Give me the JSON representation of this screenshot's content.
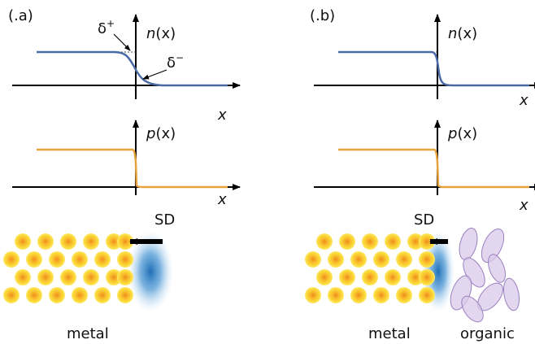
{
  "panels": [
    {
      "label": "(.a)",
      "n_axis": {
        "name": "n",
        "arg": "(x)"
      },
      "p_axis": {
        "name": "p",
        "arg": "(x)"
      },
      "x_axis_top": "x",
      "x_axis_bottom": "x",
      "delta_plus": {
        "symbol": "δ",
        "sup": "+"
      },
      "delta_minus": {
        "symbol": "δ",
        "sup": "−"
      },
      "sd": "SD",
      "metal": "metal"
    },
    {
      "label": "(.b)",
      "n_axis": {
        "name": "n",
        "arg": "(x)"
      },
      "p_axis": {
        "name": "p",
        "arg": "(x)"
      },
      "x_axis_top": "x",
      "x_axis_bottom": "x",
      "sd": "SD",
      "metal": "metal",
      "organic": "organic"
    }
  ]
}
